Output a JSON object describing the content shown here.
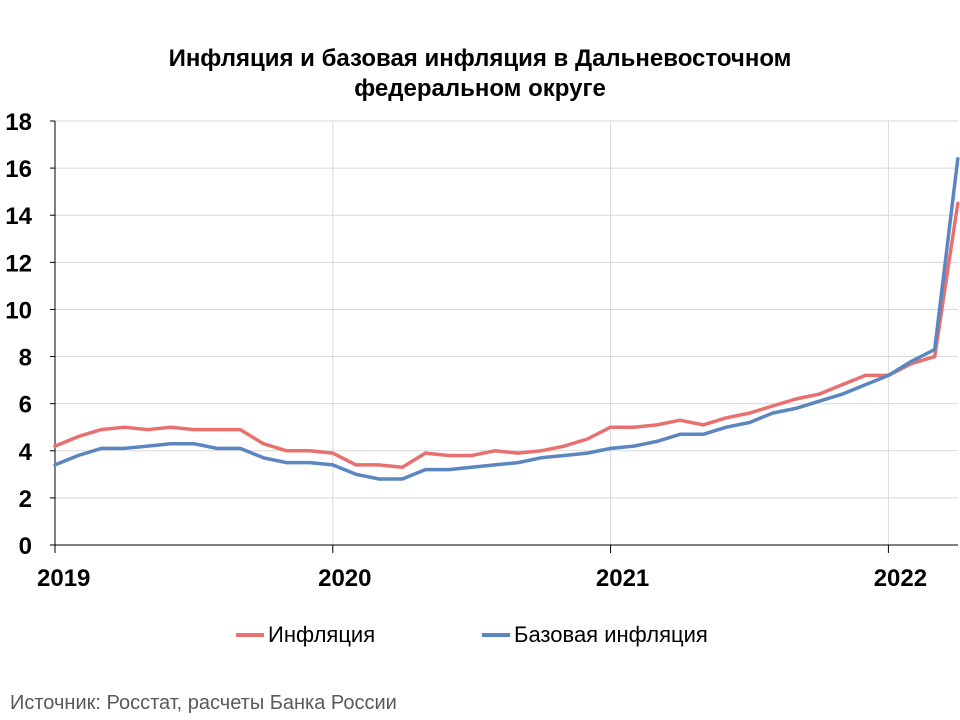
{
  "chart_data": {
    "type": "line",
    "title_line1": "Инфляция и базовая инфляция в Дальневосточном",
    "title_line2": "федеральном округе",
    "ylim": [
      0,
      18
    ],
    "yticks": [
      0,
      2,
      4,
      6,
      8,
      10,
      12,
      14,
      16,
      18
    ],
    "xticks": [
      {
        "label": "2019",
        "x": 0
      },
      {
        "label": "2020",
        "x": 12
      },
      {
        "label": "2021",
        "x": 24
      },
      {
        "label": "2022",
        "x": 36
      }
    ],
    "x_monthly_index_range": [
      0,
      39
    ],
    "grid": "horizontal and yearly vertical",
    "legend_position": "bottom",
    "series": [
      {
        "name": "Инфляция",
        "color": "#e8706f",
        "values": [
          4.2,
          4.6,
          4.9,
          5.0,
          4.9,
          5.0,
          4.9,
          4.9,
          4.9,
          4.3,
          4.0,
          4.0,
          3.9,
          3.4,
          3.4,
          3.3,
          3.9,
          3.8,
          3.8,
          4.0,
          3.9,
          4.0,
          4.2,
          4.5,
          5.0,
          5.0,
          5.1,
          5.3,
          5.1,
          5.4,
          5.6,
          5.9,
          6.2,
          6.4,
          6.8,
          7.2,
          7.2,
          7.7,
          8.0,
          14.5
        ]
      },
      {
        "name": "Базовая инфляция",
        "color": "#5b86c0",
        "values": [
          3.4,
          3.8,
          4.1,
          4.1,
          4.2,
          4.3,
          4.3,
          4.1,
          4.1,
          3.7,
          3.5,
          3.5,
          3.4,
          3.0,
          2.8,
          2.8,
          3.2,
          3.2,
          3.3,
          3.4,
          3.5,
          3.7,
          3.8,
          3.9,
          4.1,
          4.2,
          4.4,
          4.7,
          4.7,
          5.0,
          5.2,
          5.6,
          5.8,
          6.1,
          6.4,
          6.8,
          7.2,
          7.8,
          8.3,
          16.4
        ]
      }
    ]
  },
  "source_text": "Источник: Росстат, расчеты Банка России"
}
